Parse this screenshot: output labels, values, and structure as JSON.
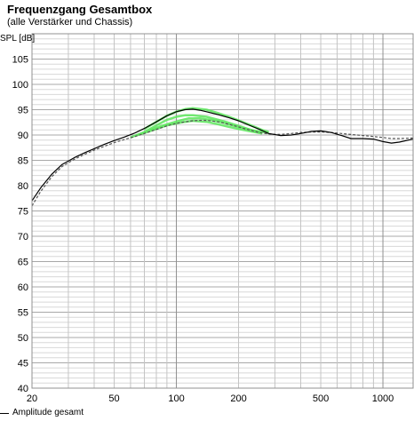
{
  "chart_data": {
    "type": "line",
    "title": "Frequenzgang Gesamtbox",
    "subtitle": "(alle Verstärker und Chassis)",
    "ylabel": "SPL [dB]",
    "xlabel": "",
    "xscale": "log",
    "xlim": [
      20,
      1400
    ],
    "ylim": [
      40,
      110
    ],
    "grid": true,
    "x_ticks": [
      20,
      50,
      100,
      200,
      500,
      1000
    ],
    "y_ticks": [
      40,
      45,
      50,
      55,
      60,
      65,
      70,
      75,
      80,
      85,
      90,
      95,
      100,
      105
    ],
    "legend_position": "bottom-left",
    "series": [
      {
        "name": "Amplitude gesamt",
        "color": "#000000",
        "style": "solid",
        "x": [
          20,
          22,
          25,
          28,
          32,
          36,
          40,
          45,
          50,
          56,
          63,
          70,
          80,
          90,
          100,
          110,
          120,
          130,
          140,
          160,
          180,
          200,
          220,
          250,
          280,
          320,
          360,
          400,
          450,
          500,
          560,
          630,
          700,
          800,
          900,
          1000,
          1100,
          1200,
          1400
        ],
        "y": [
          77.0,
          79.5,
          82.3,
          84.2,
          85.5,
          86.5,
          87.3,
          88.2,
          88.9,
          89.6,
          90.4,
          91.3,
          92.6,
          93.8,
          94.6,
          95.0,
          95.1,
          94.9,
          94.6,
          94.0,
          93.4,
          92.8,
          92.1,
          91.2,
          90.3,
          89.9,
          90.0,
          90.3,
          90.7,
          90.8,
          90.5,
          89.9,
          89.3,
          89.3,
          89.2,
          88.7,
          88.4,
          88.6,
          89.2
        ]
      },
      {
        "name": "",
        "color": "#555555",
        "style": "dashed",
        "x": [
          20,
          22,
          25,
          28,
          32,
          36,
          40,
          45,
          50,
          56,
          63,
          70,
          80,
          90,
          100,
          110,
          120,
          130,
          140,
          160,
          180,
          200,
          220,
          250,
          280,
          320,
          360,
          400,
          450,
          500,
          560,
          630,
          700,
          800,
          900,
          1000,
          1100,
          1200,
          1400
        ],
        "y": [
          76.0,
          78.8,
          81.8,
          83.8,
          85.2,
          86.2,
          87.0,
          87.8,
          88.5,
          89.1,
          89.7,
          90.3,
          91.1,
          91.8,
          92.3,
          92.6,
          92.8,
          92.9,
          92.9,
          92.6,
          92.1,
          91.6,
          91.1,
          90.5,
          90.2,
          90.1,
          90.3,
          90.5,
          90.6,
          90.6,
          90.5,
          90.3,
          90.1,
          89.9,
          89.7,
          89.5,
          89.3,
          89.3,
          89.4
        ]
      },
      {
        "name": "",
        "color": "#5ce65c",
        "style": "solid",
        "x": [
          60,
          70,
          80,
          90,
          100,
          110,
          120,
          140,
          160,
          180,
          200,
          230,
          260
        ],
        "y": [
          89.5,
          90.6,
          91.9,
          93.0,
          93.6,
          93.9,
          93.9,
          93.6,
          93.0,
          92.4,
          91.8,
          91.0,
          90.4
        ]
      },
      {
        "name": "",
        "color": "#5ce65c",
        "style": "solid",
        "x": [
          63,
          70,
          80,
          90,
          100,
          110,
          120,
          140,
          160,
          180,
          200,
          230,
          260
        ],
        "y": [
          89.8,
          90.4,
          91.2,
          91.9,
          92.3,
          92.6,
          92.8,
          92.6,
          92.1,
          91.6,
          91.2,
          90.7,
          90.3
        ]
      },
      {
        "name": "",
        "color": "#5ce65c",
        "style": "solid",
        "x": [
          70,
          80,
          90,
          100,
          110,
          120,
          140,
          160,
          180,
          200,
          230,
          260,
          280
        ],
        "y": [
          91.2,
          92.6,
          93.8,
          94.6,
          95.1,
          95.3,
          95.0,
          94.3,
          93.6,
          92.9,
          91.9,
          91.0,
          90.6
        ]
      },
      {
        "name": "",
        "color": "#5ce65c",
        "style": "solid",
        "x": [
          75,
          85,
          95,
          105,
          115,
          130,
          150,
          170,
          200,
          240,
          280
        ],
        "y": [
          91.0,
          91.8,
          92.4,
          92.9,
          93.3,
          93.3,
          92.9,
          92.4,
          91.6,
          90.8,
          90.4
        ]
      }
    ]
  }
}
